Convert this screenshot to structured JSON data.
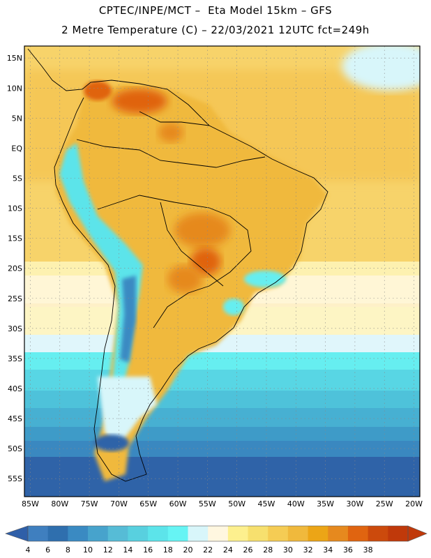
{
  "header": {
    "line1": "CPTEC/INPE/MCT –  Eta Model 15km – GFS",
    "line2": "2 Metre Temperature (C) – 22/03/2021 12UTC fct=249h"
  },
  "map": {
    "lat_labels": [
      "15N",
      "10N",
      "5N",
      "EQ",
      "5S",
      "10S",
      "15S",
      "20S",
      "25S",
      "30S",
      "35S",
      "40S",
      "45S",
      "50S",
      "55S"
    ],
    "lat_values": [
      15,
      10,
      5,
      0,
      -5,
      -10,
      -15,
      -20,
      -25,
      -30,
      -35,
      -40,
      -45,
      -50,
      -55
    ],
    "lon_labels": [
      "85W",
      "80W",
      "75W",
      "70W",
      "65W",
      "60W",
      "55W",
      "50W",
      "45W",
      "40W",
      "35W",
      "30W",
      "25W",
      "20W"
    ],
    "lon_values": [
      -85,
      -80,
      -75,
      -70,
      -65,
      -60,
      -55,
      -50,
      -45,
      -40,
      -35,
      -30,
      -25,
      -20
    ],
    "lat_range": [
      -58,
      17
    ],
    "lon_range": [
      -86,
      -19
    ],
    "background_color": "#f7c95e"
  },
  "colorbar": {
    "labels": [
      "4",
      "6",
      "8",
      "10",
      "12",
      "14",
      "16",
      "18",
      "20",
      "22",
      "24",
      "26",
      "28",
      "30",
      "32",
      "34",
      "36",
      "38"
    ],
    "colors": [
      "#3f7fbf",
      "#2f6fae",
      "#3a8ac2",
      "#47a3cc",
      "#56bcd6",
      "#58d0df",
      "#5ce4ea",
      "#66f4f4",
      "#d8f6fa",
      "#fff7e0",
      "#fdf08e",
      "#f7e06e",
      "#f5cc54",
      "#f0b93c",
      "#eca516",
      "#e6891e",
      "#e06410",
      "#cc4a0c",
      "#c0390a"
    ],
    "left_arrow_color": "#2f5fa8",
    "right_arrow_color": "#c0390a"
  }
}
